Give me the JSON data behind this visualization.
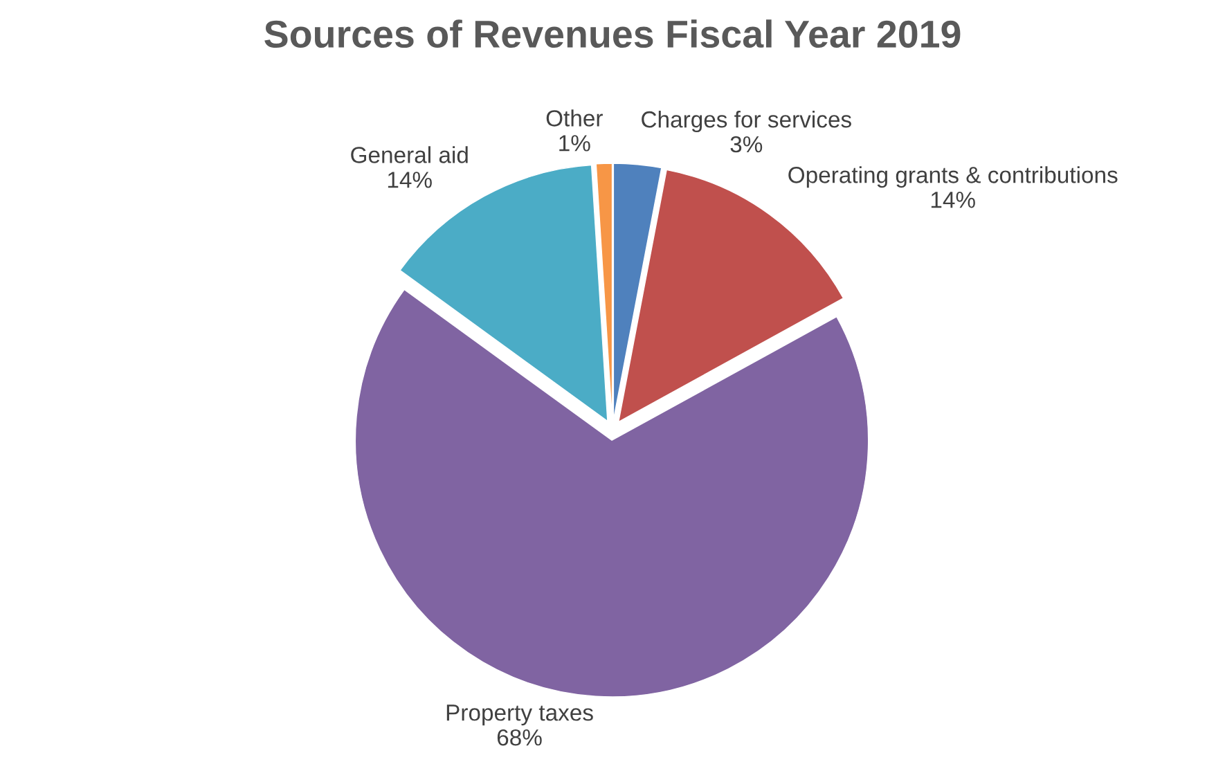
{
  "chart_data": {
    "type": "pie",
    "title": "Sources of Revenues Fiscal Year 2019",
    "categories": [
      "Charges for services",
      "Operating grants & contributions",
      "Property taxes",
      "General aid",
      "Other"
    ],
    "values": [
      3,
      14,
      68,
      14,
      1
    ],
    "value_labels": [
      "3%",
      "14%",
      "68%",
      "14%",
      "1%"
    ],
    "colors": [
      "#4f81bd",
      "#c0504d",
      "#8064a2",
      "#4bacc6",
      "#f79646"
    ],
    "legend": false
  }
}
